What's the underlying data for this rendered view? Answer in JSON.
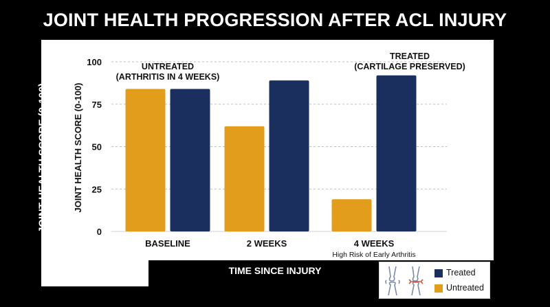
{
  "title": "JOINT HEALTH PROGRESSION AFTER ACL INJURY",
  "colors": {
    "treated": "#1a2f5e",
    "untreated": "#e39d1c",
    "grid": "#bdbdbd",
    "background": "#000000"
  },
  "chart_data": {
    "type": "bar",
    "title": "JOINT HEALTH PROGRESSION AFTER ACL INJURY",
    "xlabel": "TIME SINCE INJURY",
    "ylabel": "JOINT HEALTH SCORE (0-100)",
    "ylim": [
      0,
      100
    ],
    "yticks": [
      0,
      25,
      50,
      75,
      100
    ],
    "grid": true,
    "categories": [
      "BASELINE",
      "2 WEEKS",
      "4 WEEKS"
    ],
    "category_sublabels": [
      "",
      "",
      "High Risk of Early Arthritis"
    ],
    "series": [
      {
        "name": "Untreated",
        "values": [
          84,
          62,
          19
        ]
      },
      {
        "name": "Treated",
        "values": [
          84,
          89,
          92
        ]
      }
    ],
    "annotations": [
      {
        "text": [
          "UNTREATED",
          "(ARTHRITIS IN 4 WEEKS)"
        ],
        "near": "BASELINE"
      },
      {
        "text": [
          "TREATED",
          "(CARTILAGE PRESERVED)"
        ],
        "near": "4 WEEKS"
      }
    ],
    "legend_position": "bottom-right"
  },
  "legend": [
    {
      "label": "Treated",
      "color": "#1a2f5e"
    },
    {
      "label": "Untreated",
      "color": "#e39d1c"
    }
  ],
  "legend_icon": "knee-comparison-icon"
}
